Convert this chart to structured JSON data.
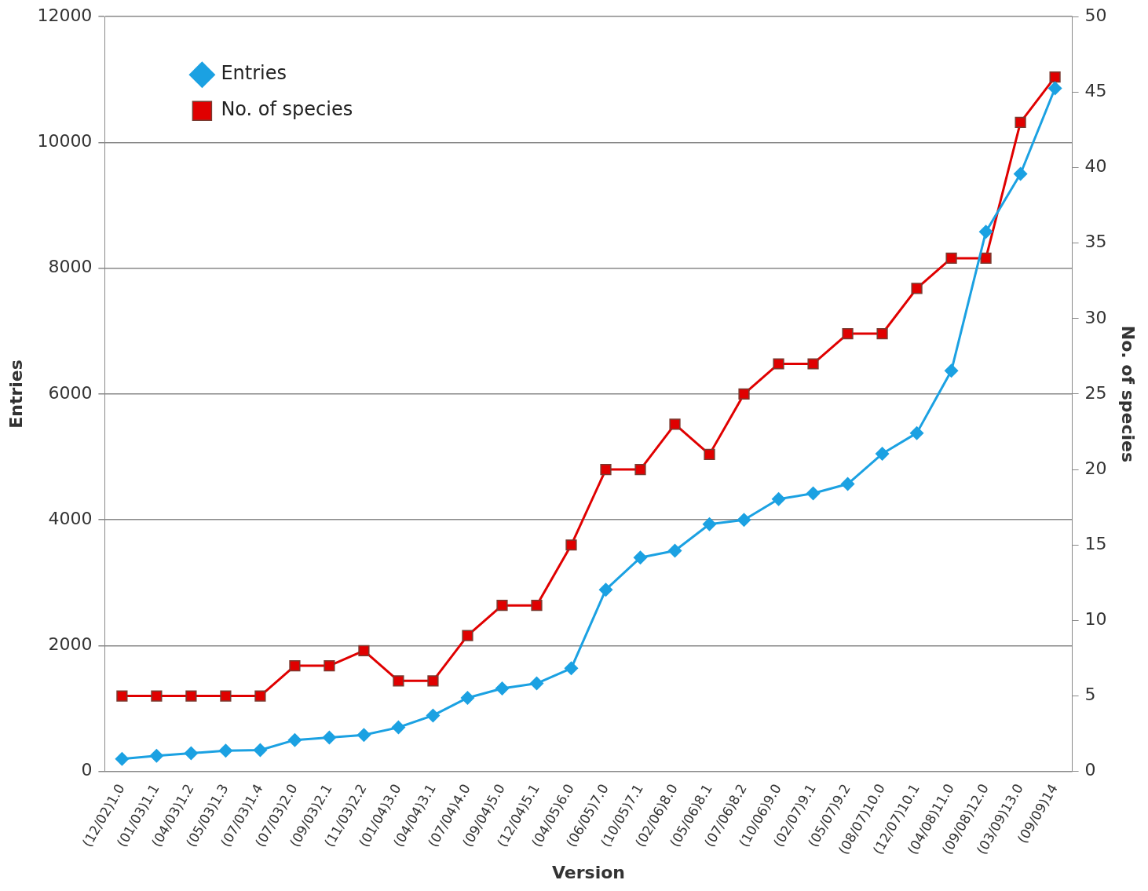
{
  "chart_data": {
    "type": "line",
    "xlabel": "Version",
    "ylabel": "Entries",
    "y2label": "No. of species",
    "categories": [
      "(12/02)1.0",
      "(01/03)1.1",
      "(04/03)1.2",
      "(05/03)1.3",
      "(07/03)1.4",
      "(07/03)2.0",
      "(09/03)2.1",
      "(11/03)2.2",
      "(01/04)3.0",
      "(04/04)3.1",
      "(07/04)4.0",
      "(09/04)5.0",
      "(12/04)5.1",
      "(04/05)6.0",
      "(06/05)7.0",
      "(10/05)7.1",
      "(02/06)8.0",
      "(05/06)8.1",
      "(07/06)8.2",
      "(10/06)9.0",
      "(02/07)9.1",
      "(05/07)9.2",
      "(08/07)10.0",
      "(12/07)10.1",
      "(04/08)11.0",
      "(09/08)12.0",
      "(03/09)13.0",
      "(09/09)14"
    ],
    "series": [
      {
        "name": "Entries",
        "color": "#1ba1e2",
        "marker": "diamond",
        "values": [
          200,
          250,
          290,
          330,
          340,
          500,
          540,
          580,
          700,
          890,
          1170,
          1320,
          1400,
          1640,
          2890,
          3400,
          3510,
          3930,
          4000,
          4330,
          4420,
          4570,
          5050,
          5380,
          6370,
          8580,
          9500,
          10860
        ]
      },
      {
        "name": "No. of species",
        "color": "#e00000",
        "marker": "square",
        "axis": "y2",
        "values": [
          5,
          5,
          5,
          5,
          5,
          7,
          7,
          8,
          6,
          6,
          9,
          11,
          11,
          15,
          20,
          20,
          23,
          21,
          25,
          27,
          27,
          29,
          29,
          32,
          34,
          34,
          43,
          46
        ]
      }
    ],
    "ylim": [
      0,
      12000
    ],
    "yticks": [
      0,
      2000,
      4000,
      6000,
      8000,
      10000,
      12000
    ],
    "y2lim": [
      0,
      50
    ],
    "y2ticks": [
      0,
      5,
      10,
      15,
      20,
      25,
      30,
      35,
      40,
      45,
      50
    ],
    "grid": "y",
    "legend": "top left"
  }
}
